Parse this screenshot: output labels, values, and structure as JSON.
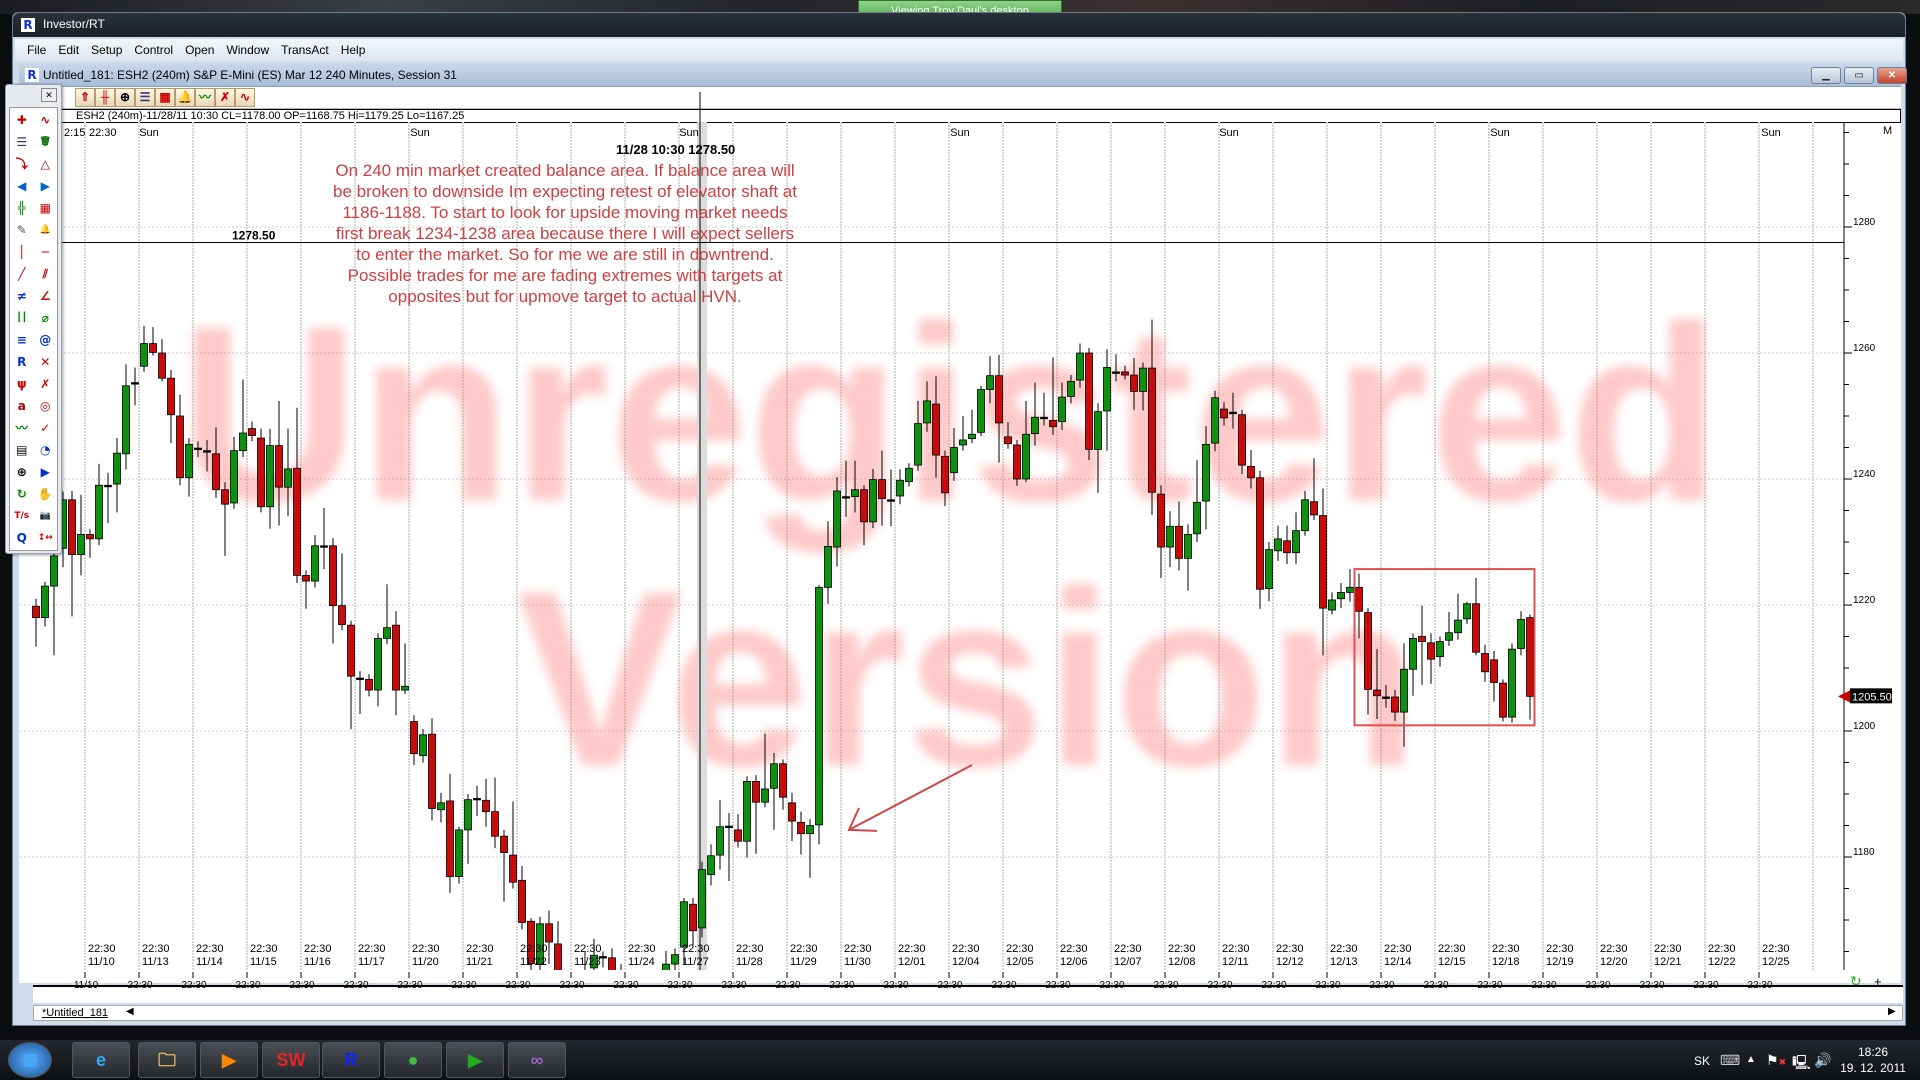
{
  "desktop": {
    "viewing_banner": "Viewing Troy Daul's desktop"
  },
  "app": {
    "title": "Investor/RT",
    "menu": [
      "File",
      "Edit",
      "Setup",
      "Control",
      "Open",
      "Window",
      "TransAct",
      "Help"
    ]
  },
  "chart_window": {
    "title": "Untitled_181: ESH2 (240m) S&P E-Mini (ES) Mar 12 240 Minutes, Session 31",
    "info_line": "ESH2 (240m)-11/28/11 10:30 CL=1178.00 OP=1168.75 Hi=1179.25 Lo=1167.25",
    "toolbar_icons": [
      "home-s-icon",
      "bar-chart-icon",
      "zoom-icon",
      "list-icon",
      "chart-window-icon",
      "bell-icon",
      "title-chart-icon",
      "delete-drawing-icon",
      "wave-icon"
    ],
    "tab_label": "*Untitled_181",
    "corner_label": "M"
  },
  "toolbox": {
    "icons": [
      "crosshair-xyz-icon",
      "wave-pattern-icon",
      "list-icon",
      "trash-icon",
      "arrow-into-tray-icon",
      "triangle-xyz-icon",
      "arrow-left-icon",
      "arrow-right-icon",
      "chart-crosshair-icon",
      "chart-window-icon",
      "notepad-icon",
      "bell-icon",
      "vertical-line-icon",
      "horizontal-line-icon",
      "trendline-icon",
      "parallel-lines-icon",
      "crossing-lines-icon",
      "fan-lines-icon",
      "vertical-bars-icon",
      "gann-icon",
      "fib-retracement-icon",
      "spiral-icon",
      "fib-r-icon",
      "cross-lines-icon",
      "pitchfork-icon",
      "delete-drawing-icon",
      "text-icon",
      "target-icon",
      "title-chart-icon",
      "ibm-check-icon",
      "report-icon",
      "shapes-icon",
      "zoom-icon",
      "flag-cursor-icon",
      "refresh-icon",
      "hand-icon",
      "time-sales-icon",
      "camera-icon",
      "quote-icon",
      "resize-arrows-icon"
    ]
  },
  "annotation": {
    "cursor_label": "11/28 10:30  1278.50",
    "cursor_price_label": "1278.50",
    "note_lines": [
      "On 240 min market created balance area. If balance area will",
      "be broken to downside Im expecting retest of elevator shaft at",
      "1186-1188. To start to look for upside moving market needs",
      "first break 1234-1238 area because there I will expect sellers",
      "to enter the market. So for me we are still in downtrend.",
      "Possible trades for me are fading extremes with targets at",
      "opposites but for upmove target to actual HVN."
    ],
    "watermark": [
      "Unregistered",
      "Version"
    ],
    "note_color": "#d04040"
  },
  "chart_data": {
    "type": "candlestick",
    "symbol": "ESH2 (240m)",
    "colors": {
      "up": "#109010",
      "down": "#c80c0c",
      "box": "#e05050",
      "arrow": "#d04848"
    },
    "ylim": [
      1162.4,
      1296.7
    ],
    "y_ticks": [
      1180,
      1200,
      1220,
      1240,
      1260,
      1280
    ],
    "last_price_label": "1205.50",
    "top_time_labels": {
      "left": [
        "2:15",
        "22:30"
      ],
      "sun": "Sun"
    },
    "session_label": "22:30",
    "x_dates": [
      "11/10",
      "11/13",
      "11/14",
      "11/15",
      "11/16",
      "11/17",
      "11/20",
      "11/21",
      "11/22",
      "11/23",
      "11/24",
      "11/27",
      "11/28",
      "11/29",
      "11/30",
      "12/01",
      "12/04",
      "12/05",
      "12/06",
      "12/07",
      "12/08",
      "12/11",
      "12/12",
      "12/13",
      "12/14",
      "12/15",
      "12/18",
      "12/19",
      "12/20",
      "12/21",
      "12/22",
      "12/25"
    ],
    "crosshair": {
      "bar_index": 74,
      "price": 1278.5
    },
    "balance_box": {
      "from_bar": 147,
      "to_bar": 167,
      "low": 1200.9,
      "high": 1225.7
    },
    "arrow": {
      "from": {
        "bar": 104,
        "price": 1194.6
      },
      "to": {
        "bar": 91,
        "price": 1184.3
      }
    },
    "bars_ohlc": [
      [
        1219.8,
        1221,
        1213.4,
        1218
      ],
      [
        1218,
        1223.7,
        1216.6,
        1223
      ],
      [
        1223,
        1228.5,
        1212,
        1227.8
      ],
      [
        1229,
        1238,
        1226,
        1236.7
      ],
      [
        1236.7,
        1238.1,
        1218.2,
        1228
      ],
      [
        1228,
        1237.5,
        1224.7,
        1231.2
      ],
      [
        1231.2,
        1232,
        1227.5,
        1230.5
      ],
      [
        1230.5,
        1242.4,
        1229.5,
        1239
      ],
      [
        1239,
        1241,
        1233,
        1239
      ],
      [
        1239.2,
        1246.5,
        1234.7,
        1244.1
      ],
      [
        1244,
        1258.2,
        1241.5,
        1254.8
      ],
      [
        1255.3,
        1257.7,
        1251.7,
        1255.3
      ],
      [
        1257.9,
        1264.3,
        1257,
        1261.5
      ],
      [
        1261.5,
        1264.1,
        1259.6,
        1260.1
      ],
      [
        1260,
        1262.2,
        1255.5,
        1256
      ],
      [
        1256,
        1257.3,
        1245.7,
        1250.2
      ],
      [
        1250,
        1253.4,
        1239,
        1240.2
      ],
      [
        1240.2,
        1246.5,
        1237.2,
        1245.5
      ],
      [
        1244.9,
        1246,
        1243.5,
        1244.9
      ],
      [
        1244.5,
        1246.2,
        1241.2,
        1244.5
      ],
      [
        1244,
        1248.2,
        1237,
        1238.3
      ],
      [
        1238.3,
        1239.5,
        1227.8,
        1236
      ],
      [
        1236.2,
        1246.7,
        1235.3,
        1244.5
      ],
      [
        1244.5,
        1255.8,
        1243.5,
        1247.3
      ],
      [
        1248,
        1249.1,
        1246,
        1246.9
      ],
      [
        1246.5,
        1248,
        1234.7,
        1235.6
      ],
      [
        1235.6,
        1248,
        1232.1,
        1245.3
      ],
      [
        1245.3,
        1252.4,
        1232.6,
        1238.7
      ],
      [
        1238.7,
        1248,
        1234.1,
        1241.6
      ],
      [
        1241.7,
        1251.3,
        1223.5,
        1224.7
      ],
      [
        1224.7,
        1225.5,
        1219.4,
        1223.8
      ],
      [
        1223.8,
        1231.1,
        1222.8,
        1229.4
      ],
      [
        1229.4,
        1235.4,
        1225.7,
        1229.4
      ],
      [
        1229.4,
        1230.6,
        1213.9,
        1219.9
      ],
      [
        1219.9,
        1228.2,
        1216,
        1216.9
      ],
      [
        1216.8,
        1217.5,
        1200.3,
        1208.7
      ],
      [
        1208.4,
        1209.5,
        1202.7,
        1208.4
      ],
      [
        1208.2,
        1209,
        1205.5,
        1206.5
      ],
      [
        1206.5,
        1215.5,
        1203.9,
        1214.7
      ],
      [
        1214.7,
        1223.3,
        1213.8,
        1216.4
      ],
      [
        1216.8,
        1219,
        1202.5,
        1206.5
      ],
      [
        1206.5,
        1213.9,
        1205.9,
        1207.1
      ],
      [
        1201.5,
        1202.5,
        1194.6,
        1196.4
      ],
      [
        1196.1,
        1200.3,
        1195,
        1199.4
      ],
      [
        1199.5,
        1202,
        1185.8,
        1187.7
      ],
      [
        1187.5,
        1190.2,
        1185.5,
        1188.6
      ],
      [
        1188.9,
        1193.2,
        1174.3,
        1176.9
      ],
      [
        1176.9,
        1184.8,
        1175.8,
        1184.3
      ],
      [
        1184.3,
        1190,
        1178.9,
        1189.1
      ],
      [
        1189.3,
        1191.3,
        1186.5,
        1189.3
      ],
      [
        1189,
        1192.4,
        1184.8,
        1187.2
      ],
      [
        1187.2,
        1192.6,
        1181.4,
        1183.3
      ],
      [
        1183.3,
        1184.3,
        1172.9,
        1180.7
      ],
      [
        1180.3,
        1188.8,
        1175,
        1176
      ],
      [
        1176.3,
        1178.6,
        1168.5,
        1169.6
      ],
      [
        1169.8,
        1170.3,
        1161.5,
        1163.1
      ],
      [
        1163,
        1170.5,
        1161,
        1169.4
      ],
      [
        1169.4,
        1171.5,
        1163,
        1166.5
      ],
      [
        1166.2,
        1169.8,
        1158,
        1160
      ],
      [
        1160,
        1162,
        1156,
        1158
      ],
      [
        1158,
        1161,
        1155.5,
        1159
      ],
      [
        1159,
        1165,
        1157.5,
        1161
      ],
      [
        1162.4,
        1167,
        1161,
        1164.4
      ],
      [
        1164.2,
        1165,
        1162.5,
        1164.2
      ],
      [
        1164,
        1165.5,
        1160,
        1162
      ],
      [
        1162,
        1163,
        1158,
        1160
      ],
      [
        1160,
        1161.5,
        1156,
        1158
      ],
      [
        1158,
        1160,
        1155,
        1159
      ],
      [
        1159,
        1161,
        1157,
        1160.5
      ],
      [
        1160.5,
        1162,
        1158,
        1159.5
      ],
      [
        1159.5,
        1165.1,
        1158.5,
        1163
      ],
      [
        1163,
        1165.5,
        1161,
        1164.5
      ],
      [
        1165.7,
        1173.5,
        1163,
        1172.9
      ],
      [
        1172.5,
        1173.5,
        1166,
        1168.3
      ],
      [
        1168.75,
        1179.25,
        1167.25,
        1178
      ],
      [
        1177.2,
        1182,
        1175.5,
        1180.2
      ],
      [
        1180.3,
        1189,
        1178,
        1184.8
      ],
      [
        1184.9,
        1187,
        1176.2,
        1184.9
      ],
      [
        1184.3,
        1186.8,
        1181.5,
        1182.5
      ],
      [
        1182.5,
        1192.8,
        1179.9,
        1192
      ],
      [
        1192,
        1193,
        1180.5,
        1188.7
      ],
      [
        1188.7,
        1199.6,
        1187.9,
        1190.8
      ],
      [
        1190.9,
        1196.5,
        1184.3,
        1194.8
      ],
      [
        1194.8,
        1195.5,
        1187.5,
        1189.5
      ],
      [
        1188.6,
        1190.2,
        1182.5,
        1185.7
      ],
      [
        1185.5,
        1187.2,
        1180.4,
        1183.7
      ],
      [
        1183.7,
        1186,
        1176.7,
        1185
      ],
      [
        1185.1,
        1223.2,
        1182,
        1222.8
      ],
      [
        1222.8,
        1233.3,
        1220.2,
        1229.3
      ],
      [
        1229.2,
        1240.3,
        1226.1,
        1238.1
      ],
      [
        1237.2,
        1242.9,
        1234,
        1237.2
      ],
      [
        1237.2,
        1242.9,
        1234.7,
        1238.3
      ],
      [
        1238.3,
        1239,
        1229.5,
        1233.2
      ],
      [
        1233.2,
        1241.6,
        1232.2,
        1239.9
      ],
      [
        1239.9,
        1244.5,
        1232.6,
        1236.9
      ],
      [
        1236.7,
        1241.5,
        1232.5,
        1236.7
      ],
      [
        1237.3,
        1241.5,
        1236,
        1239.8
      ],
      [
        1239.6,
        1242.5,
        1238.8,
        1241.7
      ],
      [
        1242.2,
        1252.4,
        1241.3,
        1248.8
      ],
      [
        1248.9,
        1255.5,
        1247.5,
        1252.4
      ],
      [
        1251.9,
        1256.3,
        1240.2,
        1243.8
      ],
      [
        1243.6,
        1244.5,
        1235.7,
        1237.8
      ],
      [
        1241,
        1248.1,
        1239.7,
        1245
      ],
      [
        1245.4,
        1250,
        1244.5,
        1246.2
      ],
      [
        1246.4,
        1251,
        1245.7,
        1247.1
      ],
      [
        1247.4,
        1254.8,
        1246.8,
        1254.2
      ],
      [
        1254.2,
        1259.5,
        1252,
        1256.4
      ],
      [
        1256.4,
        1259.7,
        1242.6,
        1248.9
      ],
      [
        1246.7,
        1249,
        1244.8,
        1245.6
      ],
      [
        1245.4,
        1246.2,
        1238.9,
        1240
      ],
      [
        1240,
        1252.4,
        1239.5,
        1247.1
      ],
      [
        1247.2,
        1255.3,
        1245.3,
        1249.8
      ],
      [
        1249.8,
        1253.7,
        1248.5,
        1249.8
      ],
      [
        1249.3,
        1259.3,
        1247,
        1248.3
      ],
      [
        1249.1,
        1255.3,
        1247.8,
        1253
      ],
      [
        1253.1,
        1256.5,
        1252,
        1255.5
      ],
      [
        1255.7,
        1261.5,
        1254.5,
        1260
      ],
      [
        1260,
        1260.8,
        1243,
        1244.7
      ],
      [
        1244.7,
        1252,
        1237.8,
        1250.7
      ],
      [
        1250.8,
        1260.6,
        1244.5,
        1257.7
      ],
      [
        1257,
        1259.8,
        1255.5,
        1257
      ],
      [
        1257,
        1258,
        1255.8,
        1256.5
      ],
      [
        1256.5,
        1259.2,
        1251,
        1253.9
      ],
      [
        1253.9,
        1258.5,
        1250.9,
        1257.6
      ],
      [
        1257.6,
        1265.3,
        1234.3,
        1237.9
      ],
      [
        1237.6,
        1239,
        1224.3,
        1229.2
      ],
      [
        1229.2,
        1234.9,
        1226,
        1232.5
      ],
      [
        1232.5,
        1236.4,
        1225.5,
        1227.4
      ],
      [
        1227.4,
        1232.8,
        1222.3,
        1231.2
      ],
      [
        1231.3,
        1243,
        1230,
        1236.3
      ],
      [
        1236.5,
        1248.4,
        1232,
        1245.5
      ],
      [
        1245.7,
        1254,
        1244.4,
        1252.9
      ],
      [
        1251.1,
        1252.2,
        1248.5,
        1249.7
      ],
      [
        1250.6,
        1253.7,
        1248,
        1250.4
      ],
      [
        1250.2,
        1251,
        1240.8,
        1242.2
      ],
      [
        1242,
        1244.6,
        1238.5,
        1240.2
      ],
      [
        1240.2,
        1241.3,
        1219.4,
        1222.5
      ],
      [
        1222.6,
        1230,
        1220.6,
        1228.8
      ],
      [
        1228.6,
        1232.6,
        1227,
        1230.5
      ],
      [
        1230.2,
        1232.6,
        1226.5,
        1228.3
      ],
      [
        1228.3,
        1234.7,
        1226.5,
        1231.8
      ],
      [
        1231.8,
        1238.1,
        1231,
        1236.7
      ],
      [
        1236.4,
        1243.3,
        1233.5,
        1234.3
      ],
      [
        1234.2,
        1238.5,
        1212,
        1219.5
      ],
      [
        1219.2,
        1222,
        1218.5,
        1220.8
      ],
      [
        1221,
        1223.5,
        1219.5,
        1222
      ],
      [
        1222,
        1225.7,
        1220.5,
        1222.8
      ],
      [
        1222.8,
        1225,
        1214.7,
        1219
      ],
      [
        1218.8,
        1219.5,
        1202.6,
        1206.6
      ],
      [
        1206.5,
        1213,
        1201.9,
        1205.6
      ],
      [
        1205.4,
        1207.3,
        1203.7,
        1205.4
      ],
      [
        1205.4,
        1206.5,
        1201.6,
        1203
      ],
      [
        1203,
        1213.9,
        1197.5,
        1209.8
      ],
      [
        1209.8,
        1215.5,
        1205.6,
        1214.7
      ],
      [
        1215,
        1219.9,
        1207.3,
        1214.2
      ],
      [
        1214,
        1215.5,
        1207.5,
        1211.4
      ],
      [
        1211.8,
        1215,
        1210.2,
        1214.2
      ],
      [
        1214.4,
        1218.9,
        1213.5,
        1215.6
      ],
      [
        1215.6,
        1221.8,
        1214.5,
        1217.6
      ],
      [
        1217.8,
        1220.5,
        1217,
        1220.2
      ],
      [
        1220.2,
        1224.3,
        1212,
        1212.5
      ],
      [
        1212.3,
        1213.7,
        1207.8,
        1209.4
      ],
      [
        1211.3,
        1212.7,
        1204.7,
        1207.7
      ],
      [
        1207.6,
        1208.2,
        1201.5,
        1202.2
      ],
      [
        1202.2,
        1213.9,
        1201.3,
        1213
      ],
      [
        1213.1,
        1219,
        1212,
        1217.7
      ],
      [
        1218,
        1218.5,
        1201.8,
        1205.5
      ]
    ]
  },
  "taskbar": {
    "apps": [
      "start-orb-icon",
      "internet-explorer-icon",
      "file-explorer-icon",
      "media-player-icon",
      "solidworks-dwg-icon",
      "investor-rt-icon",
      "globe-icon",
      "green-arrow-icon",
      "purple-app-icon"
    ],
    "language": "SK",
    "time": "18:26",
    "date": "19. 12. 2011"
  }
}
